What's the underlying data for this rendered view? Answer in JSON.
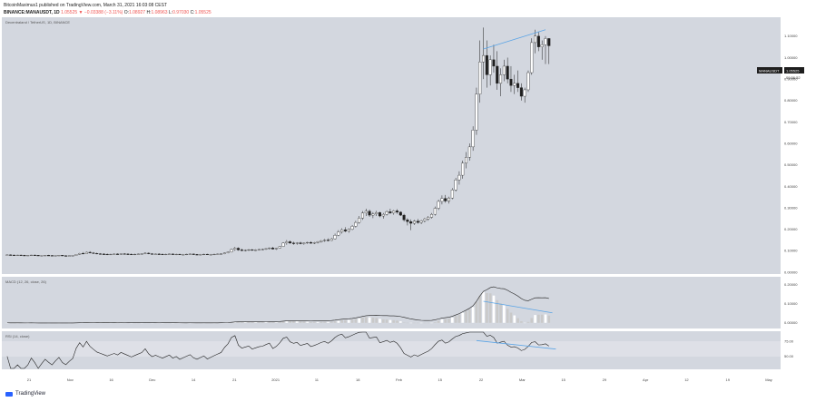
{
  "header": {
    "line1": "BitcoinMaximus1 published on TradingView.com, March 31, 2021 16:03:08 CEST",
    "symbol": "BINANCE:MANAUSDT, 1D",
    "last": "1.05525",
    "change": "▼ −0.03388 (−3.11%)",
    "o_label": "O:",
    "o_val": "1.08927",
    "h_label": "H:",
    "h_val": "1.08963",
    "l_label": "L:",
    "l_val": "0.97030",
    "c_label": "C:",
    "c_val": "1.05525"
  },
  "price_pane": {
    "title": "Decentraland / TetherUS, 1D, BINANCE",
    "y_ticks": [
      "1.10000",
      "1.00000",
      "0.90000",
      "0.80000",
      "0.70000",
      "0.60000",
      "0.50000",
      "0.40000",
      "0.30000",
      "0.20000",
      "0.10000",
      "0.00000"
    ],
    "price_tag": "MANAUSDT",
    "price_value": "1.05525",
    "countdown": "09:56:52"
  },
  "macd_pane": {
    "title": "MACD (12, 26, close, 26)",
    "y_ticks": [
      "0.20000",
      "0.10000",
      "0.00000"
    ]
  },
  "rsi_pane": {
    "title": "RSI (14, close)",
    "y_ticks": [
      "75.00",
      "50.00"
    ]
  },
  "x_ticks": [
    "21",
    "Nov",
    "16",
    "Dec",
    "14",
    "21",
    "2021",
    "11",
    "18",
    "Feb",
    "15",
    "22",
    "Mar",
    "15",
    "29",
    "Apr",
    "12",
    "19",
    "May"
  ],
  "colors": {
    "pane_bg": "#d3d7df",
    "candle_up": "#ffffff",
    "candle_down": "#1e1e1e",
    "trendline": "#5aa4e6",
    "hist": "#c9c9c9"
  },
  "brand": "TradingView",
  "chart_data": {
    "type": "candlestick",
    "symbol": "MANAUSDT",
    "interval": "1D",
    "ylim": [
      0.0,
      1.15
    ],
    "x_range": [
      "2020-10-14",
      "2021-05-24"
    ],
    "candles": [
      [
        0.08,
        0.082,
        0.078,
        0.081
      ],
      [
        0.081,
        0.083,
        0.079,
        0.08
      ],
      [
        0.08,
        0.082,
        0.078,
        0.079
      ],
      [
        0.079,
        0.081,
        0.077,
        0.08
      ],
      [
        0.08,
        0.082,
        0.078,
        0.079
      ],
      [
        0.079,
        0.081,
        0.077,
        0.078
      ],
      [
        0.078,
        0.08,
        0.076,
        0.079
      ],
      [
        0.079,
        0.081,
        0.077,
        0.08
      ],
      [
        0.08,
        0.082,
        0.078,
        0.079
      ],
      [
        0.079,
        0.08,
        0.076,
        0.077
      ],
      [
        0.077,
        0.079,
        0.075,
        0.078
      ],
      [
        0.078,
        0.08,
        0.076,
        0.079
      ],
      [
        0.079,
        0.081,
        0.077,
        0.078
      ],
      [
        0.078,
        0.08,
        0.076,
        0.077
      ],
      [
        0.077,
        0.079,
        0.075,
        0.078
      ],
      [
        0.078,
        0.08,
        0.076,
        0.079
      ],
      [
        0.079,
        0.08,
        0.076,
        0.077
      ],
      [
        0.077,
        0.079,
        0.075,
        0.076
      ],
      [
        0.076,
        0.078,
        0.074,
        0.077
      ],
      [
        0.077,
        0.079,
        0.075,
        0.078
      ],
      [
        0.078,
        0.084,
        0.077,
        0.083
      ],
      [
        0.083,
        0.09,
        0.081,
        0.088
      ],
      [
        0.088,
        0.094,
        0.084,
        0.086
      ],
      [
        0.086,
        0.096,
        0.085,
        0.093
      ],
      [
        0.093,
        0.098,
        0.088,
        0.09
      ],
      [
        0.09,
        0.094,
        0.086,
        0.088
      ],
      [
        0.088,
        0.091,
        0.084,
        0.086
      ],
      [
        0.086,
        0.089,
        0.082,
        0.085
      ],
      [
        0.085,
        0.088,
        0.081,
        0.084
      ],
      [
        0.084,
        0.087,
        0.08,
        0.083
      ],
      [
        0.083,
        0.086,
        0.08,
        0.084
      ],
      [
        0.084,
        0.087,
        0.081,
        0.085
      ],
      [
        0.085,
        0.088,
        0.082,
        0.084
      ],
      [
        0.084,
        0.087,
        0.081,
        0.086
      ],
      [
        0.086,
        0.089,
        0.083,
        0.085
      ],
      [
        0.085,
        0.088,
        0.082,
        0.084
      ],
      [
        0.084,
        0.087,
        0.081,
        0.083
      ],
      [
        0.083,
        0.086,
        0.08,
        0.084
      ],
      [
        0.084,
        0.087,
        0.081,
        0.085
      ],
      [
        0.085,
        0.088,
        0.082,
        0.086
      ],
      [
        0.086,
        0.093,
        0.084,
        0.089
      ],
      [
        0.089,
        0.092,
        0.084,
        0.086
      ],
      [
        0.086,
        0.089,
        0.082,
        0.084
      ],
      [
        0.084,
        0.087,
        0.081,
        0.085
      ],
      [
        0.085,
        0.088,
        0.082,
        0.084
      ],
      [
        0.084,
        0.087,
        0.081,
        0.083
      ],
      [
        0.083,
        0.086,
        0.08,
        0.084
      ],
      [
        0.084,
        0.087,
        0.081,
        0.085
      ],
      [
        0.085,
        0.087,
        0.082,
        0.083
      ],
      [
        0.083,
        0.086,
        0.08,
        0.084
      ],
      [
        0.084,
        0.086,
        0.081,
        0.082
      ],
      [
        0.082,
        0.085,
        0.079,
        0.083
      ],
      [
        0.083,
        0.086,
        0.08,
        0.084
      ],
      [
        0.084,
        0.087,
        0.081,
        0.085
      ],
      [
        0.085,
        0.087,
        0.082,
        0.083
      ],
      [
        0.083,
        0.085,
        0.08,
        0.082
      ],
      [
        0.082,
        0.085,
        0.079,
        0.083
      ],
      [
        0.083,
        0.086,
        0.08,
        0.084
      ],
      [
        0.084,
        0.086,
        0.081,
        0.082
      ],
      [
        0.082,
        0.085,
        0.079,
        0.083
      ],
      [
        0.083,
        0.086,
        0.08,
        0.084
      ],
      [
        0.084,
        0.087,
        0.081,
        0.085
      ],
      [
        0.085,
        0.088,
        0.082,
        0.086
      ],
      [
        0.086,
        0.092,
        0.084,
        0.09
      ],
      [
        0.09,
        0.096,
        0.088,
        0.094
      ],
      [
        0.094,
        0.11,
        0.092,
        0.106
      ],
      [
        0.106,
        0.118,
        0.1,
        0.112
      ],
      [
        0.112,
        0.116,
        0.1,
        0.104
      ],
      [
        0.104,
        0.11,
        0.098,
        0.101
      ],
      [
        0.101,
        0.106,
        0.097,
        0.103
      ],
      [
        0.103,
        0.108,
        0.099,
        0.105
      ],
      [
        0.105,
        0.108,
        0.1,
        0.102
      ],
      [
        0.102,
        0.107,
        0.099,
        0.104
      ],
      [
        0.104,
        0.109,
        0.101,
        0.106
      ],
      [
        0.106,
        0.11,
        0.102,
        0.107
      ],
      [
        0.107,
        0.112,
        0.104,
        0.11
      ],
      [
        0.11,
        0.116,
        0.106,
        0.113
      ],
      [
        0.113,
        0.118,
        0.106,
        0.108
      ],
      [
        0.108,
        0.114,
        0.104,
        0.112
      ],
      [
        0.112,
        0.122,
        0.11,
        0.12
      ],
      [
        0.12,
        0.14,
        0.118,
        0.136
      ],
      [
        0.136,
        0.15,
        0.128,
        0.142
      ],
      [
        0.142,
        0.148,
        0.132,
        0.136
      ],
      [
        0.136,
        0.142,
        0.128,
        0.134
      ],
      [
        0.134,
        0.14,
        0.128,
        0.137
      ],
      [
        0.137,
        0.142,
        0.13,
        0.133
      ],
      [
        0.133,
        0.138,
        0.128,
        0.136
      ],
      [
        0.136,
        0.142,
        0.132,
        0.139
      ],
      [
        0.139,
        0.144,
        0.133,
        0.135
      ],
      [
        0.135,
        0.141,
        0.131,
        0.138
      ],
      [
        0.138,
        0.145,
        0.134,
        0.142
      ],
      [
        0.142,
        0.15,
        0.138,
        0.147
      ],
      [
        0.147,
        0.155,
        0.142,
        0.15
      ],
      [
        0.15,
        0.158,
        0.144,
        0.148
      ],
      [
        0.148,
        0.16,
        0.146,
        0.156
      ],
      [
        0.156,
        0.18,
        0.152,
        0.172
      ],
      [
        0.172,
        0.196,
        0.168,
        0.188
      ],
      [
        0.188,
        0.205,
        0.18,
        0.198
      ],
      [
        0.198,
        0.21,
        0.186,
        0.192
      ],
      [
        0.192,
        0.204,
        0.184,
        0.2
      ],
      [
        0.2,
        0.22,
        0.196,
        0.214
      ],
      [
        0.214,
        0.24,
        0.208,
        0.232
      ],
      [
        0.232,
        0.262,
        0.226,
        0.252
      ],
      [
        0.252,
        0.285,
        0.244,
        0.276
      ],
      [
        0.276,
        0.296,
        0.262,
        0.284
      ],
      [
        0.284,
        0.292,
        0.258,
        0.266
      ],
      [
        0.266,
        0.28,
        0.252,
        0.272
      ],
      [
        0.272,
        0.286,
        0.262,
        0.278
      ],
      [
        0.278,
        0.282,
        0.256,
        0.262
      ],
      [
        0.262,
        0.276,
        0.25,
        0.27
      ],
      [
        0.27,
        0.288,
        0.264,
        0.282
      ],
      [
        0.282,
        0.296,
        0.272,
        0.276
      ],
      [
        0.276,
        0.29,
        0.268,
        0.286
      ],
      [
        0.286,
        0.294,
        0.272,
        0.28
      ],
      [
        0.28,
        0.284,
        0.262,
        0.266
      ],
      [
        0.266,
        0.272,
        0.236,
        0.244
      ],
      [
        0.244,
        0.252,
        0.218,
        0.236
      ],
      [
        0.236,
        0.246,
        0.196,
        0.228
      ],
      [
        0.228,
        0.244,
        0.22,
        0.238
      ],
      [
        0.238,
        0.248,
        0.226,
        0.232
      ],
      [
        0.232,
        0.244,
        0.224,
        0.24
      ],
      [
        0.24,
        0.254,
        0.232,
        0.248
      ],
      [
        0.248,
        0.262,
        0.24,
        0.256
      ],
      [
        0.256,
        0.276,
        0.25,
        0.27
      ],
      [
        0.27,
        0.306,
        0.264,
        0.298
      ],
      [
        0.298,
        0.338,
        0.29,
        0.33
      ],
      [
        0.33,
        0.358,
        0.316,
        0.344
      ],
      [
        0.344,
        0.36,
        0.324,
        0.332
      ],
      [
        0.332,
        0.352,
        0.32,
        0.346
      ],
      [
        0.346,
        0.392,
        0.34,
        0.384
      ],
      [
        0.384,
        0.44,
        0.376,
        0.43
      ],
      [
        0.43,
        0.47,
        0.408,
        0.452
      ],
      [
        0.452,
        0.52,
        0.436,
        0.508
      ],
      [
        0.508,
        0.56,
        0.484,
        0.536
      ],
      [
        0.536,
        0.6,
        0.52,
        0.584
      ],
      [
        0.584,
        0.68,
        0.566,
        0.662
      ],
      [
        0.662,
        0.86,
        0.64,
        0.83
      ],
      [
        0.83,
        1.08,
        0.79,
        0.98
      ],
      [
        0.98,
        1.14,
        0.9,
        1.01
      ],
      [
        1.01,
        1.08,
        0.86,
        0.92
      ],
      [
        0.92,
        1.01,
        0.87,
        0.99
      ],
      [
        0.99,
        1.06,
        0.93,
        0.96
      ],
      [
        0.96,
        1.03,
        0.85,
        0.88
      ],
      [
        0.88,
        0.95,
        0.82,
        0.92
      ],
      [
        0.92,
        0.99,
        0.89,
        0.96
      ],
      [
        0.96,
        1.0,
        0.88,
        0.9
      ],
      [
        0.9,
        0.96,
        0.84,
        0.87
      ],
      [
        0.87,
        0.92,
        0.83,
        0.88
      ],
      [
        0.88,
        0.94,
        0.84,
        0.86
      ],
      [
        0.86,
        0.88,
        0.8,
        0.82
      ],
      [
        0.82,
        0.86,
        0.79,
        0.85
      ],
      [
        0.85,
        0.94,
        0.84,
        0.93
      ],
      [
        0.93,
        1.09,
        0.92,
        1.07
      ],
      [
        1.07,
        1.13,
        1.02,
        1.1
      ],
      [
        1.1,
        1.12,
        1.03,
        1.05
      ],
      [
        1.05,
        1.08,
        0.99,
        1.06
      ],
      [
        1.06,
        1.1,
        0.97,
        1.089
      ],
      [
        1.089,
        1.09,
        0.97,
        1.055
      ]
    ],
    "trendlines": [
      {
        "pane": "price",
        "from": [
          138,
          1.04
        ],
        "to": [
          156,
          1.13
        ]
      },
      {
        "pane": "macd",
        "from": [
          138,
          0.112
        ],
        "to": [
          158,
          0.052
        ]
      },
      {
        "pane": "rsi",
        "from": [
          136,
          76
        ],
        "to": [
          159,
          62
        ]
      }
    ],
    "macd_ylim": [
      -0.02,
      0.23
    ],
    "rsi_ylim": [
      30,
      90
    ],
    "rsi_band": [
      30,
      70
    ]
  }
}
